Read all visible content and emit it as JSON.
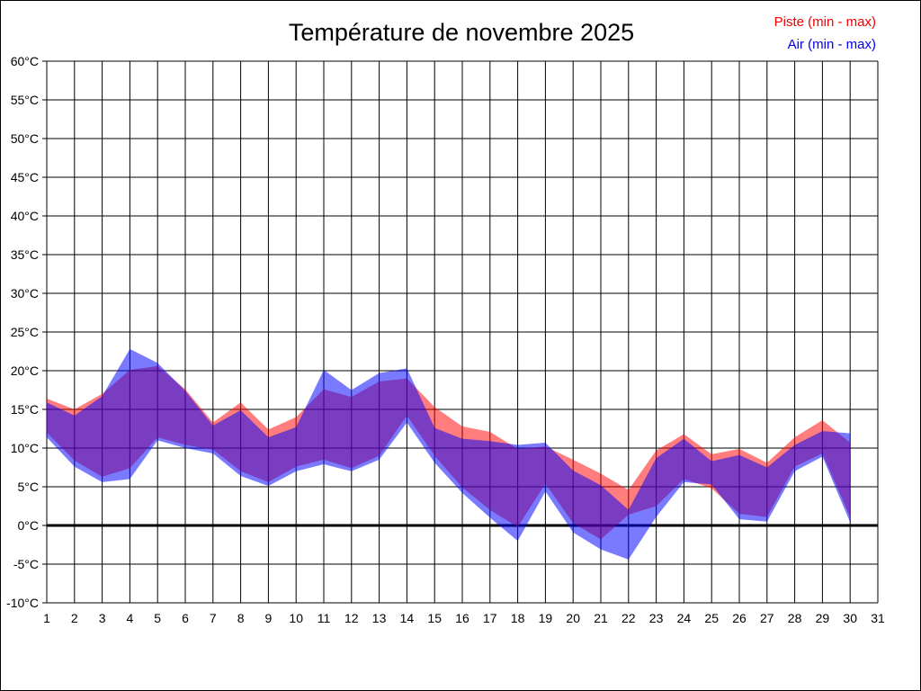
{
  "title": "Température de novembre 2025",
  "legend": [
    {
      "label": "Piste (min - max)",
      "color": "#ee0000"
    },
    {
      "label": "Air (min - max)",
      "color": "#0000ee"
    }
  ],
  "chart_data": {
    "type": "area",
    "title": "Température de novembre 2025",
    "xlabel": "",
    "ylabel": "",
    "ylim": [
      -10,
      60
    ],
    "xlim": [
      1,
      31
    ],
    "grid": true,
    "legend_position": "top-right",
    "x_tick_labels": [
      "1",
      "2",
      "3",
      "4",
      "5",
      "6",
      "7",
      "8",
      "9",
      "10",
      "11",
      "12",
      "13",
      "14",
      "15",
      "16",
      "17",
      "18",
      "19",
      "20",
      "21",
      "22",
      "23",
      "24",
      "25",
      "26",
      "27",
      "28",
      "29",
      "30",
      "31"
    ],
    "y_tick_labels": [
      "60°C",
      "55°C",
      "50°C",
      "45°C",
      "40°C",
      "35°C",
      "30°C",
      "25°C",
      "20°C",
      "15°C",
      "10°C",
      "5°C",
      "0°C",
      "-5°C",
      "-10°C"
    ],
    "y_tick_values": [
      60,
      55,
      50,
      45,
      40,
      35,
      30,
      25,
      20,
      15,
      10,
      5,
      0,
      -5,
      -10
    ],
    "days": [
      1,
      2,
      3,
      4,
      5,
      6,
      7,
      8,
      9,
      10,
      11,
      12,
      13,
      14,
      15,
      16,
      17,
      18,
      19,
      20,
      21,
      22,
      23,
      24,
      25,
      26,
      27,
      28,
      29,
      30
    ],
    "series": [
      {
        "name": "Piste (min - max)",
        "band": true,
        "fill": "rgba(255,0,0,0.51)",
        "min": [
          12.0,
          8.4,
          6.3,
          7.4,
          11.4,
          10.4,
          9.8,
          7.0,
          5.6,
          7.6,
          8.5,
          7.4,
          9.0,
          14.2,
          9.0,
          4.9,
          2.0,
          -0.2,
          5.4,
          0.3,
          -1.8,
          1.4,
          2.5,
          6.0,
          4.8,
          1.5,
          1.1,
          7.6,
          9.3,
          1.1
        ],
        "max": [
          16.4,
          15.0,
          17.0,
          20.1,
          20.6,
          17.6,
          13.3,
          15.9,
          12.4,
          14.0,
          17.6,
          16.6,
          18.6,
          19.0,
          15.3,
          12.8,
          12.1,
          9.9,
          10.2,
          8.5,
          6.7,
          4.6,
          9.7,
          11.8,
          9.2,
          9.9,
          8.1,
          11.4,
          13.6,
          10.7
        ]
      },
      {
        "name": "Air (min - max)",
        "band": true,
        "fill": "rgba(0,0,255,0.52)",
        "min": [
          11.4,
          7.6,
          5.6,
          6.0,
          11.0,
          10.0,
          9.3,
          6.4,
          5.1,
          7.0,
          7.9,
          7.0,
          8.5,
          13.3,
          8.1,
          4.2,
          1.0,
          -2.0,
          4.4,
          -0.9,
          -3.1,
          -4.4,
          1.1,
          5.6,
          5.3,
          0.8,
          0.5,
          7.0,
          8.9,
          0.4
        ],
        "max": [
          15.9,
          14.2,
          16.7,
          22.8,
          21.0,
          17.4,
          12.9,
          14.9,
          11.4,
          12.7,
          20.1,
          17.5,
          19.7,
          20.3,
          12.6,
          11.2,
          10.9,
          10.4,
          10.7,
          7.1,
          5.2,
          2.0,
          8.7,
          11.2,
          8.3,
          9.1,
          7.5,
          10.4,
          12.2,
          11.9
        ]
      }
    ],
    "zero_line": {
      "value": 0,
      "color": "#000000",
      "width": 3
    },
    "grid_color": "#000000",
    "tick_label_color": "#000000"
  }
}
